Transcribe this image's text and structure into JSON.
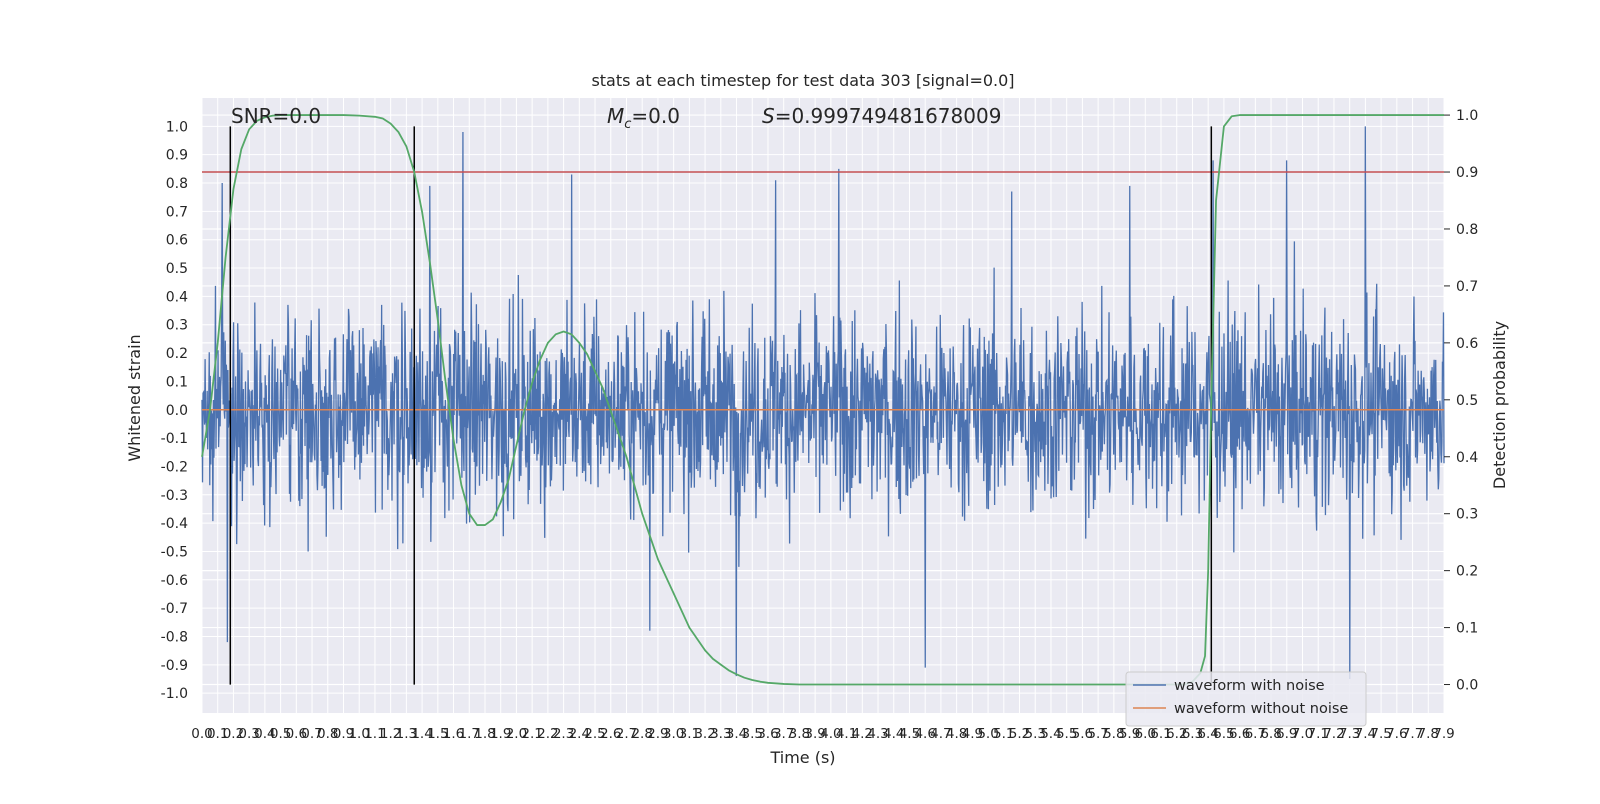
{
  "chart_data": {
    "type": "line",
    "title": "stats at each timestep for test data 303 [signal=0.0]",
    "xlabel": "Time (s)",
    "ylabel": "Whitened strain",
    "ylabel_right": "Detection probability",
    "xlim": [
      0.0,
      7.9
    ],
    "ylim": [
      -1.07,
      1.1
    ],
    "ylim_right": [
      -0.05,
      1.03
    ],
    "grid": true,
    "legend_position": "lower right",
    "annotations": {
      "snr": "SNR=0.0",
      "mc_symbol": "M",
      "mc_sub": "c",
      "mc_value": "=0.0",
      "s_symbol": "S",
      "s_value": "=0.999749481678009"
    },
    "x_ticks": [
      0.0,
      0.1,
      0.2,
      0.3,
      0.4,
      0.5,
      0.6,
      0.7,
      0.8,
      0.9,
      1.0,
      1.1,
      1.2,
      1.3,
      1.4,
      1.5,
      1.6,
      1.7,
      1.8,
      1.9,
      2.0,
      2.1,
      2.2,
      2.3,
      2.4,
      2.5,
      2.6,
      2.7,
      2.8,
      2.9,
      3.0,
      3.1,
      3.2,
      3.3,
      3.4,
      3.5,
      3.6,
      3.7,
      3.8,
      3.9,
      4.0,
      4.1,
      4.2,
      4.3,
      4.4,
      4.5,
      4.6,
      4.7,
      4.8,
      4.9,
      5.0,
      5.1,
      5.2,
      5.3,
      5.4,
      5.5,
      5.6,
      5.7,
      5.8,
      5.9,
      6.0,
      6.1,
      6.2,
      6.3,
      6.4,
      6.5,
      6.6,
      6.7,
      6.8,
      6.9,
      7.0,
      7.1,
      7.2,
      7.3,
      7.4,
      7.5,
      7.6,
      7.7,
      7.8,
      7.9
    ],
    "y_ticks": [
      -1.0,
      -0.9,
      -0.8,
      -0.7,
      -0.6,
      -0.5,
      -0.4,
      -0.3,
      -0.2,
      -0.1,
      0.0,
      0.1,
      0.2,
      0.3,
      0.4,
      0.5,
      0.6,
      0.7,
      0.8,
      0.9,
      1.0
    ],
    "y_ticks_right": [
      0.0,
      0.1,
      0.2,
      0.3,
      0.4,
      0.5,
      0.6,
      0.7,
      0.8,
      0.9,
      1.0
    ],
    "threshold": {
      "axis": "right",
      "value": 0.9,
      "color": "#c44e52"
    },
    "vertical_markers": {
      "x": [
        0.18,
        1.35,
        6.42
      ],
      "y_range": [
        -0.97,
        1.0
      ],
      "color": "#000000"
    },
    "series": [
      {
        "name": "waveform with noise",
        "axis": "left",
        "color": "#4c72b0",
        "style": "dense noise, roughly ±0.4 typical with peaks near ±0.9",
        "samples": 2400,
        "peaks_x": [
          0.13,
          0.16,
          1.45,
          1.66,
          2.35,
          2.85,
          3.4,
          3.65,
          4.05,
          4.6,
          5.15,
          5.9,
          6.43,
          6.9,
          7.3,
          7.4
        ],
        "peaks_y": [
          0.8,
          -0.82,
          0.79,
          0.98,
          0.83,
          -0.78,
          -0.94,
          0.81,
          0.85,
          -0.91,
          0.77,
          0.79,
          0.88,
          0.88,
          -0.95,
          1.0
        ]
      },
      {
        "name": "waveform without noise",
        "axis": "left",
        "color": "#dd8452",
        "x": [
          0.0,
          7.9
        ],
        "y": [
          0.0,
          0.0
        ]
      },
      {
        "name": "Detection probability",
        "axis": "right",
        "color": "#55a868",
        "x": [
          0.0,
          0.05,
          0.1,
          0.15,
          0.2,
          0.25,
          0.3,
          0.35,
          0.4,
          0.45,
          0.5,
          0.55,
          0.6,
          0.65,
          0.7,
          0.75,
          0.8,
          0.85,
          0.9,
          1.0,
          1.1,
          1.15,
          1.2,
          1.25,
          1.3,
          1.35,
          1.4,
          1.45,
          1.5,
          1.55,
          1.6,
          1.65,
          1.7,
          1.75,
          1.8,
          1.85,
          1.9,
          1.95,
          2.0,
          2.05,
          2.1,
          2.15,
          2.2,
          2.25,
          2.3,
          2.35,
          2.4,
          2.45,
          2.5,
          2.55,
          2.6,
          2.65,
          2.7,
          2.75,
          2.8,
          2.85,
          2.9,
          2.95,
          3.0,
          3.05,
          3.1,
          3.15,
          3.2,
          3.25,
          3.3,
          3.35,
          3.4,
          3.45,
          3.5,
          3.55,
          3.6,
          3.7,
          3.8,
          4.0,
          5.0,
          6.0,
          6.2,
          6.25,
          6.3,
          6.35,
          6.38,
          6.4,
          6.42,
          6.45,
          6.5,
          6.55,
          6.6,
          6.7,
          7.0,
          7.9
        ],
        "y": [
          0.4,
          0.48,
          0.6,
          0.75,
          0.87,
          0.94,
          0.975,
          0.99,
          0.996,
          0.999,
          1.0,
          1.0,
          1.0,
          1.0,
          1.0,
          1.0,
          1.0,
          1.0,
          1.0,
          0.999,
          0.997,
          0.994,
          0.985,
          0.97,
          0.945,
          0.9,
          0.83,
          0.74,
          0.64,
          0.53,
          0.43,
          0.35,
          0.3,
          0.28,
          0.28,
          0.29,
          0.32,
          0.36,
          0.42,
          0.48,
          0.53,
          0.57,
          0.6,
          0.615,
          0.62,
          0.615,
          0.6,
          0.58,
          0.55,
          0.52,
          0.48,
          0.44,
          0.4,
          0.35,
          0.3,
          0.26,
          0.22,
          0.19,
          0.16,
          0.13,
          0.1,
          0.08,
          0.06,
          0.045,
          0.035,
          0.025,
          0.018,
          0.012,
          0.008,
          0.005,
          0.003,
          0.001,
          0.0,
          0.0,
          0.0,
          0.0,
          0.0,
          0.0,
          0.005,
          0.02,
          0.05,
          0.2,
          0.5,
          0.85,
          0.98,
          0.998,
          1.0,
          1.0,
          1.0,
          1.0
        ]
      }
    ]
  }
}
